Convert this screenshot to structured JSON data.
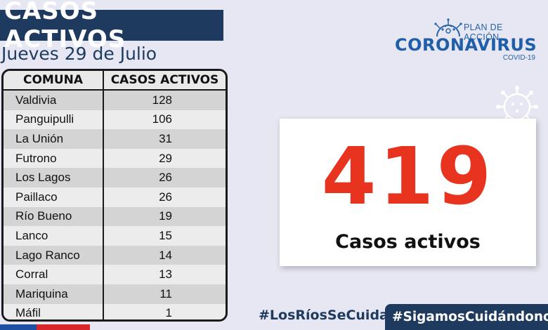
{
  "header": {
    "title": "CASOS ACTIVOS",
    "date": "Jueves 29 de Julio"
  },
  "table": {
    "headers": [
      "COMUNA",
      "CASOS ACTIVOS"
    ],
    "rows": [
      {
        "comuna": "Valdivia",
        "casos": "128"
      },
      {
        "comuna": "Panguipulli",
        "casos": "106"
      },
      {
        "comuna": "La Unión",
        "casos": "31"
      },
      {
        "comuna": "Futrono",
        "casos": "29"
      },
      {
        "comuna": "Los Lagos",
        "casos": "26"
      },
      {
        "comuna": "Paillaco",
        "casos": "26"
      },
      {
        "comuna": "Río Bueno",
        "casos": "19"
      },
      {
        "comuna": "Lanco",
        "casos": "15"
      },
      {
        "comuna": "Lago Ranco",
        "casos": "14"
      },
      {
        "comuna": "Corral",
        "casos": "13"
      },
      {
        "comuna": "Mariquina",
        "casos": "11"
      },
      {
        "comuna": "Máfil",
        "casos": "1"
      }
    ]
  },
  "logo": {
    "plan": "PLAN DE ACCIÓN",
    "main": "CORONAVIRUS",
    "sub": "COVID-19",
    "icon": "virus-icon"
  },
  "stat": {
    "value": "419",
    "label": "Casos activos"
  },
  "footer": {
    "hashtag1": "#LosRíosSeCuida",
    "hashtag2": "#SigamosCuidándonos"
  },
  "colors": {
    "navy": "#1e3a5f",
    "accent_red": "#e8341f",
    "logo_blue": "#1f5ea8",
    "background": "#e6e7f2"
  }
}
